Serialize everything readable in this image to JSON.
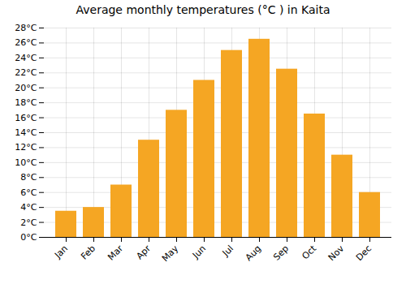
{
  "chart_data": {
    "type": "bar",
    "title": "Average monthly temperatures (°C ) in Kaita",
    "categories": [
      "Jan",
      "Feb",
      "Mar",
      "Apr",
      "May",
      "Jun",
      "Jul",
      "Aug",
      "Sep",
      "Oct",
      "Nov",
      "Dec"
    ],
    "values": [
      3.5,
      4.0,
      7.0,
      13.0,
      17.0,
      21.0,
      25.0,
      26.5,
      22.5,
      16.5,
      11.0,
      6.0
    ],
    "color": "#F5A623",
    "ylim": [
      0,
      28
    ],
    "yticks": [
      {
        "value": 0,
        "label": "0°C"
      },
      {
        "value": 2,
        "label": "2°C"
      },
      {
        "value": 4,
        "label": "4°C"
      },
      {
        "value": 6,
        "label": "6°C"
      },
      {
        "value": 8,
        "label": "8°C"
      },
      {
        "value": 10,
        "label": "10°C"
      },
      {
        "value": 12,
        "label": "12°C"
      },
      {
        "value": 14,
        "label": "14°C"
      },
      {
        "value": 16,
        "label": "16°C"
      },
      {
        "value": 18,
        "label": "18°C"
      },
      {
        "value": 20,
        "label": "20°C"
      },
      {
        "value": 22,
        "label": "22°C"
      },
      {
        "value": 24,
        "label": "24°C"
      },
      {
        "value": 26,
        "label": "26°C"
      },
      {
        "value": 28,
        "label": "28°C"
      }
    ],
    "grid": true
  }
}
